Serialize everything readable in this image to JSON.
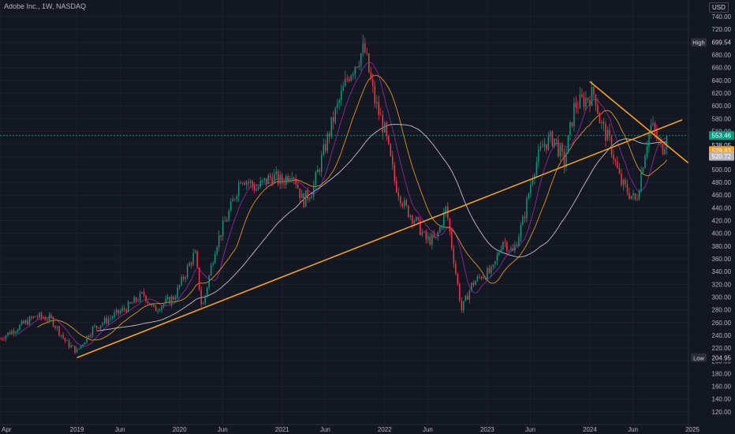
{
  "header": {
    "title": "Adobe Inc., 1W, NASDAQ",
    "currency": "USD"
  },
  "chart_data": {
    "type": "candlestick",
    "symbol": "Adobe Inc.",
    "interval": "1W",
    "exchange": "NASDAQ",
    "ylim": [
      110,
      750
    ],
    "y_ticks": [
      120,
      140,
      160,
      180,
      200,
      220,
      240,
      260,
      280,
      300,
      320,
      340,
      360,
      380,
      400,
      420,
      440,
      460,
      480,
      500,
      520,
      540,
      560,
      580,
      600,
      620,
      640,
      660,
      680,
      700,
      720,
      740
    ],
    "x_ticks": [
      {
        "label": "Apr",
        "t": 2018.25
      },
      {
        "label": "2019",
        "t": 2019.0
      },
      {
        "label": "Jun",
        "t": 2019.42
      },
      {
        "label": "2020",
        "t": 2020.0
      },
      {
        "label": "Jun",
        "t": 2020.42
      },
      {
        "label": "2021",
        "t": 2021.0
      },
      {
        "label": "Jun",
        "t": 2021.42
      },
      {
        "label": "2022",
        "t": 2022.0
      },
      {
        "label": "Jun",
        "t": 2022.42
      },
      {
        "label": "2023",
        "t": 2023.0
      },
      {
        "label": "Jun",
        "t": 2023.42
      },
      {
        "label": "2024",
        "t": 2024.0
      },
      {
        "label": "Jun",
        "t": 2024.42
      },
      {
        "label": "2025",
        "t": 2025.0
      }
    ],
    "price_path": [
      [
        2018.25,
        235
      ],
      [
        2018.45,
        255
      ],
      [
        2018.6,
        270
      ],
      [
        2018.75,
        265
      ],
      [
        2018.9,
        228
      ],
      [
        2019.0,
        215
      ],
      [
        2019.15,
        250
      ],
      [
        2019.35,
        270
      ],
      [
        2019.5,
        285
      ],
      [
        2019.65,
        305
      ],
      [
        2019.75,
        280
      ],
      [
        2019.95,
        300
      ],
      [
        2020.05,
        335
      ],
      [
        2020.15,
        370
      ],
      [
        2020.22,
        280
      ],
      [
        2020.35,
        380
      ],
      [
        2020.5,
        440
      ],
      [
        2020.6,
        490
      ],
      [
        2020.75,
        470
      ],
      [
        2020.9,
        490
      ],
      [
        2021.0,
        480
      ],
      [
        2021.1,
        500
      ],
      [
        2021.2,
        450
      ],
      [
        2021.3,
        470
      ],
      [
        2021.5,
        580
      ],
      [
        2021.65,
        650
      ],
      [
        2021.8,
        690
      ],
      [
        2021.9,
        610
      ],
      [
        2022.0,
        560
      ],
      [
        2022.1,
        480
      ],
      [
        2022.2,
        440
      ],
      [
        2022.3,
        420
      ],
      [
        2022.4,
        390
      ],
      [
        2022.5,
        390
      ],
      [
        2022.6,
        440
      ],
      [
        2022.7,
        330
      ],
      [
        2022.75,
        280
      ],
      [
        2022.85,
        320
      ],
      [
        2022.95,
        335
      ],
      [
        2023.05,
        340
      ],
      [
        2023.15,
        390
      ],
      [
        2023.25,
        370
      ],
      [
        2023.35,
        420
      ],
      [
        2023.45,
        500
      ],
      [
        2023.55,
        540
      ],
      [
        2023.65,
        550
      ],
      [
        2023.75,
        510
      ],
      [
        2023.85,
        600
      ],
      [
        2023.95,
        610
      ],
      [
        2024.05,
        620
      ],
      [
        2024.1,
        575
      ],
      [
        2024.2,
        540
      ],
      [
        2024.3,
        480
      ],
      [
        2024.35,
        470
      ],
      [
        2024.45,
        450
      ],
      [
        2024.55,
        540
      ],
      [
        2024.6,
        570
      ],
      [
        2024.7,
        530
      ],
      [
        2024.75,
        553
      ]
    ],
    "last_price": 553.46,
    "price_labels": [
      {
        "label": "High",
        "value": 699.54,
        "color": "#131722"
      },
      {
        "label": "",
        "value": 553.46,
        "color": "#089981"
      },
      {
        "label": "",
        "value": 538.05,
        "color": "#131722"
      },
      {
        "label": "",
        "value": 529.83,
        "color": "#f7a21b"
      },
      {
        "label": "",
        "value": 520.72,
        "color": "#b2b5be"
      },
      {
        "label": "Low",
        "value": 204.95,
        "color": "#131722"
      }
    ],
    "trendlines": [
      {
        "color": "#f7a21b",
        "from": [
          2019.0,
          205
        ],
        "to": [
          2024.9,
          578
        ]
      },
      {
        "color": "#f7a21b",
        "from": [
          2024.0,
          638
        ],
        "to": [
          2025.0,
          505
        ]
      }
    ],
    "moving_averages": [
      {
        "color": "#9c27b0",
        "period": 10
      },
      {
        "color": "#f7a21b",
        "period": 20
      },
      {
        "color": "#d1d4dc",
        "period": 50
      }
    ],
    "colors": {
      "up": "#089981",
      "down": "#f23645",
      "background": "#131722",
      "grid": "#1e222d",
      "axis_text": "#b2b5be"
    },
    "grid": true
  }
}
